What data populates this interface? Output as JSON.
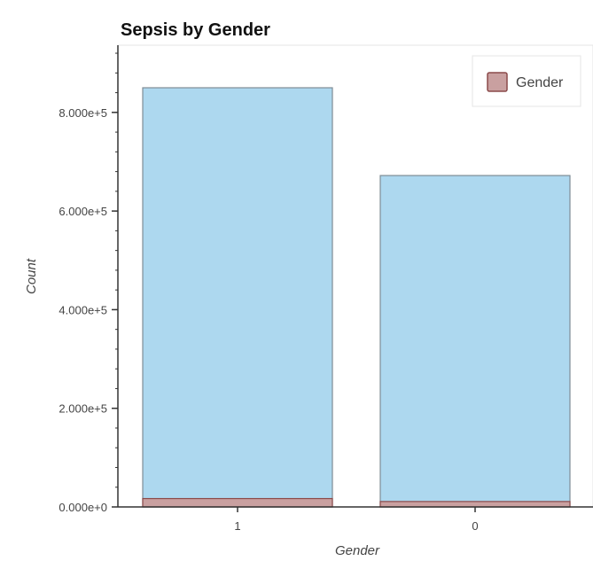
{
  "chart_data": {
    "type": "bar",
    "title": "Sepsis by Gender",
    "xlabel": "Gender",
    "ylabel": "Count",
    "categories": [
      "1",
      "0"
    ],
    "series": [
      {
        "name": "",
        "values": [
          850000,
          672000
        ],
        "color": "#add8ef"
      },
      {
        "name": "Gender",
        "values": [
          17000,
          11000
        ],
        "color": "#c9a0a0"
      }
    ],
    "ylim": [
      0,
      930000
    ],
    "yticks": [
      0,
      200000,
      400000,
      600000,
      800000
    ],
    "ytick_labels": [
      "0.000e+0",
      "2.000e+5",
      "4.000e+5",
      "6.000e+5",
      "8.000e+5"
    ],
    "legend": {
      "entries": [
        "Gender"
      ],
      "position": "top-right"
    },
    "grid": false,
    "colors": {
      "bar_total": "#add8ef",
      "bar_gender": "#c9a0a0",
      "bar_outline": "#7f8c95",
      "gender_outline": "#8b4a4a",
      "axis": "#333333",
      "frame": "#e5e5e5"
    }
  }
}
